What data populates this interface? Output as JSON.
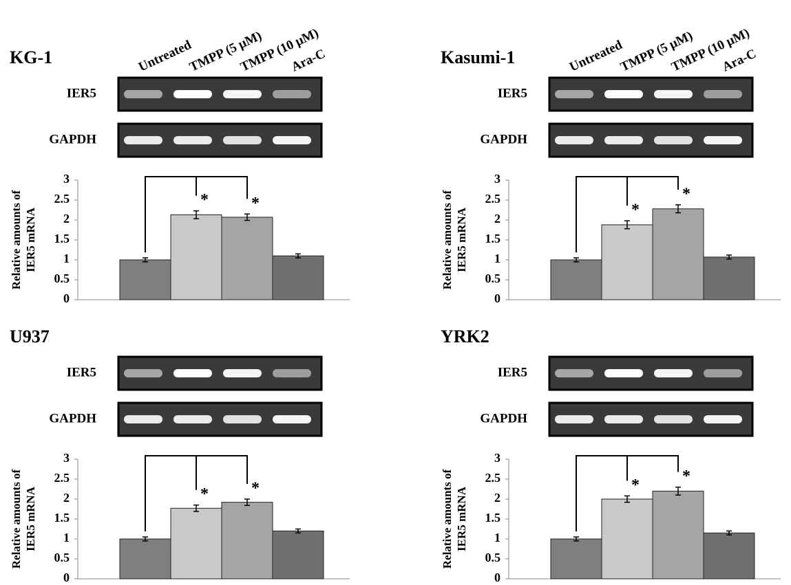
{
  "chart_data": [
    {
      "type": "bar",
      "title": "KG-1",
      "gel_labels": [
        "IER5",
        "GAPDH"
      ],
      "categories": [
        "Untreated",
        "TMPP (5 μM)",
        "TMPP (10 μM)",
        "Ara-C"
      ],
      "values": [
        1.0,
        2.13,
        2.07,
        1.1
      ],
      "errors": [
        0.05,
        0.1,
        0.08,
        0.05
      ],
      "colors": [
        "#7f7f7f",
        "#c9c9c9",
        "#a5a5a5",
        "#707070"
      ],
      "significance_marks": [
        null,
        "*",
        "*",
        null
      ],
      "y_label": [
        "Relative amounts of",
        "IER5 mRNA"
      ],
      "ylim": [
        0,
        3
      ],
      "yticks": [
        0,
        0.5,
        1,
        1.5,
        2,
        2.5,
        3
      ]
    },
    {
      "type": "bar",
      "title": "Kasumi-1",
      "gel_labels": [
        "IER5",
        "GAPDH"
      ],
      "categories": [
        "Untreated",
        "TMPP (5 μM)",
        "TMPP (10 μM)",
        "Ara-C"
      ],
      "values": [
        1.0,
        1.88,
        2.28,
        1.07
      ],
      "errors": [
        0.05,
        0.1,
        0.1,
        0.05
      ],
      "colors": [
        "#7f7f7f",
        "#c9c9c9",
        "#a5a5a5",
        "#707070"
      ],
      "significance_marks": [
        null,
        "*",
        "*",
        null
      ],
      "y_label": [
        "Relative amounts of",
        "IER5 mRNA"
      ],
      "ylim": [
        0,
        3
      ],
      "yticks": [
        0,
        0.5,
        1,
        1.5,
        2,
        2.5,
        3
      ]
    },
    {
      "type": "bar",
      "title": "U937",
      "gel_labels": [
        "IER5",
        "GAPDH"
      ],
      "categories": [
        null,
        null,
        null,
        null
      ],
      "values": [
        1.0,
        1.77,
        1.92,
        1.2
      ],
      "errors": [
        0.05,
        0.08,
        0.08,
        0.05
      ],
      "colors": [
        "#7f7f7f",
        "#c9c9c9",
        "#a5a5a5",
        "#707070"
      ],
      "significance_marks": [
        null,
        "*",
        "*",
        null
      ],
      "y_label": [
        "Relative amounts of",
        "IER5 mRNA"
      ],
      "ylim": [
        0,
        3
      ],
      "yticks": [
        0,
        0.5,
        1,
        1.5,
        2,
        2.5,
        3
      ]
    },
    {
      "type": "bar",
      "title": "YRK2",
      "gel_labels": [
        "IER5",
        "GAPDH"
      ],
      "categories": [
        null,
        null,
        null,
        null
      ],
      "values": [
        1.0,
        2.0,
        2.2,
        1.15
      ],
      "errors": [
        0.05,
        0.08,
        0.1,
        0.05
      ],
      "colors": [
        "#7f7f7f",
        "#c9c9c9",
        "#a5a5a5",
        "#707070"
      ],
      "significance_marks": [
        null,
        "*",
        "*",
        null
      ],
      "y_label": [
        "Relative amounts of",
        "IER5 mRNA"
      ],
      "ylim": [
        0,
        3
      ],
      "yticks": [
        0,
        0.5,
        1,
        1.5,
        2,
        2.5,
        3
      ]
    }
  ]
}
